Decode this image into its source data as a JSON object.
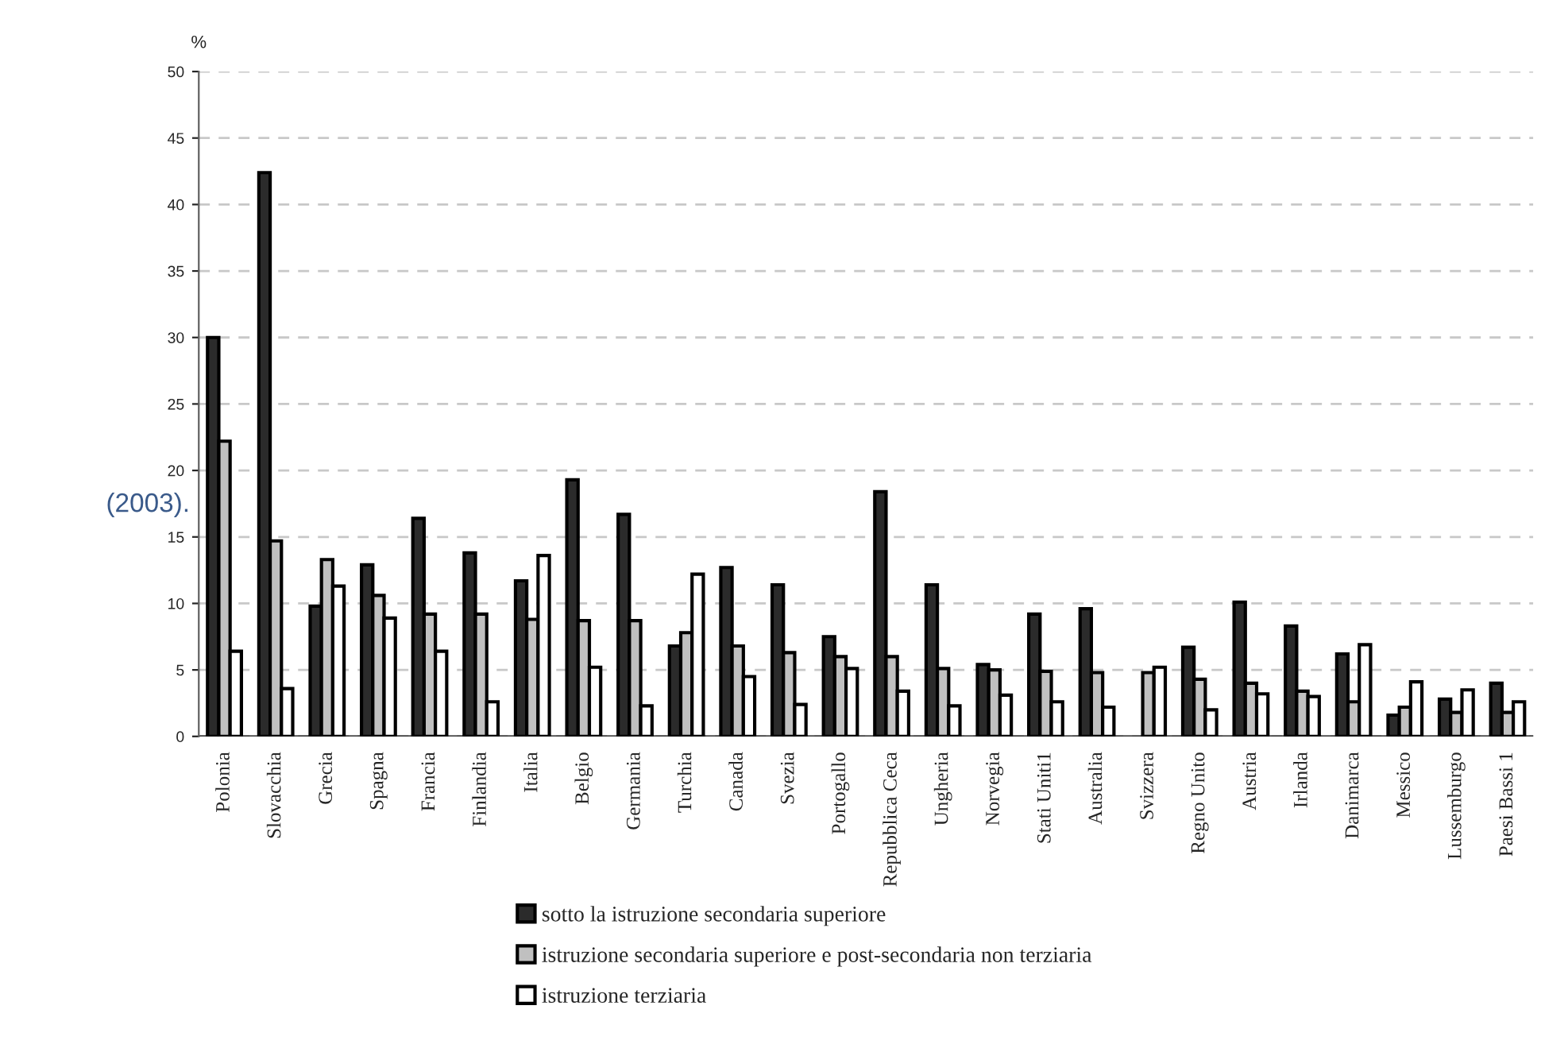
{
  "chart_data": {
    "type": "bar",
    "ylabel": "%",
    "categories": [
      "Polonia",
      "Slovacchia",
      "Grecia",
      "Spagna",
      "Francia",
      "Finlandia",
      "Italia",
      "Belgio",
      "Germania",
      "Turchia",
      "Canada",
      "Svezia",
      "Portogallo",
      "Repubblica Ceca",
      "Ungheria",
      "Norvegia",
      "Stati Uniti1",
      "Australia",
      "Svizzera",
      "Regno Unito",
      "Austria",
      "Irlanda",
      "Danimarca",
      "Messico",
      "Lussemburgo",
      "Paesi Bassi 1"
    ],
    "series": [
      {
        "name": "sotto la istruzione secondaria superiore",
        "color": "#2b2b2b",
        "values": [
          30,
          42.4,
          9.8,
          12.9,
          16.4,
          13.8,
          11.7,
          19.3,
          16.7,
          6.8,
          12.7,
          11.4,
          7.5,
          18.4,
          11.4,
          5.4,
          9.2,
          9.6,
          null,
          6.7,
          10.1,
          8.3,
          6.2,
          1.6,
          2.8,
          4.0
        ]
      },
      {
        "name": "istruzione secondaria superiore e post-secondaria non terziaria",
        "color": "#c0c0c0",
        "values": [
          22.2,
          14.7,
          13.3,
          10.6,
          9.2,
          9.2,
          8.8,
          8.7,
          8.7,
          7.8,
          6.8,
          6.3,
          6.0,
          6.0,
          5.1,
          5.0,
          4.9,
          4.8,
          4.8,
          4.3,
          4.0,
          3.4,
          2.6,
          2.2,
          1.8,
          1.8
        ]
      },
      {
        "name": "istruzione terziaria",
        "color": "#ffffff",
        "values": [
          6.4,
          3.6,
          11.3,
          8.9,
          6.4,
          2.6,
          13.6,
          5.2,
          2.3,
          12.2,
          4.5,
          2.4,
          5.1,
          3.4,
          2.3,
          3.1,
          2.6,
          2.2,
          5.2,
          2.0,
          3.2,
          3.0,
          6.9,
          4.1,
          3.5,
          2.6
        ]
      }
    ],
    "ylim": [
      0,
      50
    ],
    "yticks": [
      0,
      5,
      10,
      15,
      20,
      25,
      30,
      35,
      40,
      45,
      50
    ],
    "grid": "y",
    "legend": "bottom",
    "annotations": [
      "(2003)."
    ]
  }
}
